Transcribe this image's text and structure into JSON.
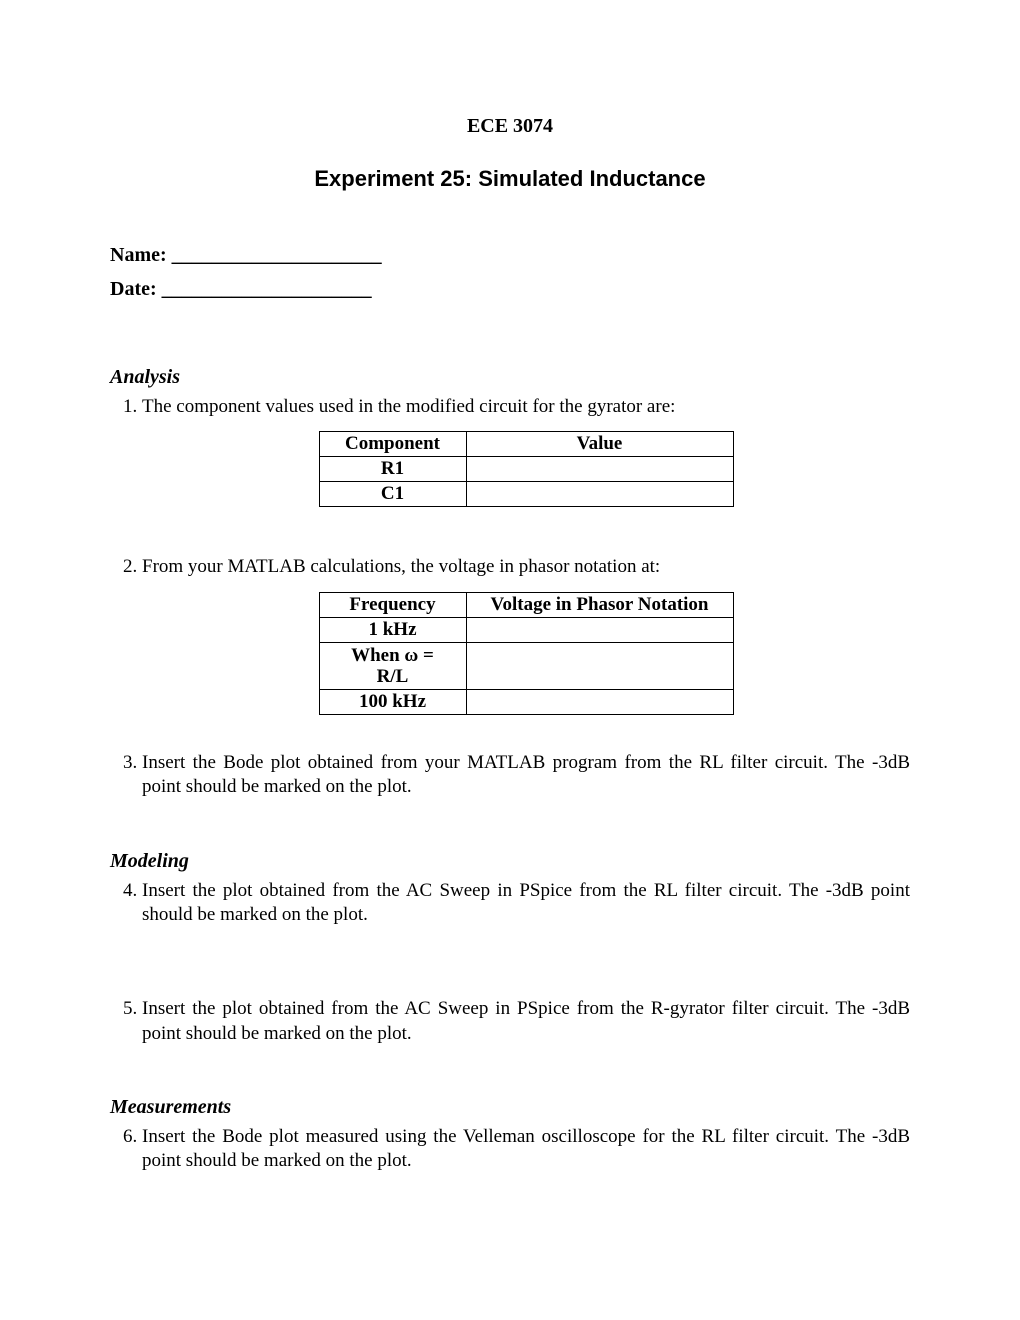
{
  "header": {
    "course_code": "ECE 3074",
    "title": "Experiment 25: Simulated Inductance"
  },
  "fields": {
    "name_label": "Name: _____________________",
    "date_label": "Date:  _____________________"
  },
  "sections": {
    "analysis": {
      "heading": "Analysis",
      "item1": "The component values used in the modified circuit for the gyrator are:",
      "table1": {
        "col1_header": "Component",
        "col2_header": "Value",
        "rows": [
          {
            "component": "R1",
            "value": ""
          },
          {
            "component": "C1",
            "value": ""
          }
        ]
      },
      "item2": "From your MATLAB calculations, the voltage in phasor notation at:",
      "table2": {
        "col1_header": "Frequency",
        "col2_header": "Voltage in Phasor Notation",
        "rows": [
          {
            "freq": "1 kHz",
            "volt": ""
          },
          {
            "freq_line1": "When ω =",
            "freq_line2": "R/L",
            "volt": ""
          },
          {
            "freq": "100 kHz",
            "volt": ""
          }
        ]
      },
      "item3": "Insert the Bode plot obtained from your MATLAB program from the RL filter circuit.  The -3dB point should be marked on the plot."
    },
    "modeling": {
      "heading": "Modeling",
      "item4": "Insert the plot obtained from the AC Sweep in PSpice from the RL filter circuit.  The -3dB point should be marked on the plot.",
      "item5": "Insert the plot obtained from the AC Sweep in PSpice from the R-gyrator filter circuit.  The -3dB point should be marked on the plot."
    },
    "measurements": {
      "heading": "Measurements",
      "item6": "Insert the Bode plot measured using the Velleman oscilloscope for the RL filter circuit.  The -3dB point should be marked on the plot."
    }
  }
}
